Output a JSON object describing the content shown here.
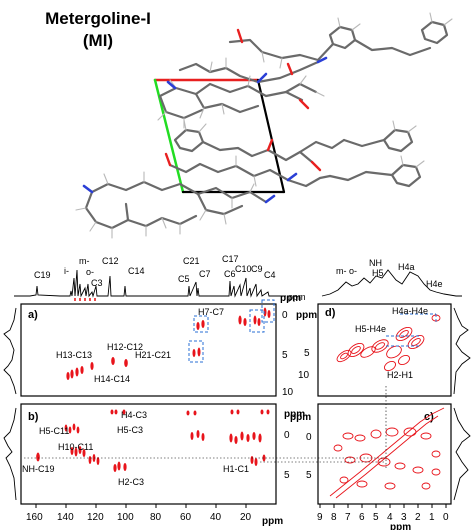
{
  "title": {
    "line1": "Metergoline-I",
    "line2": "(MI)"
  },
  "carbon_peaks": {
    "c19": "C19",
    "i": "i-",
    "m": "m-",
    "o": "o-",
    "c3": "C3",
    "c12": "C12",
    "c14": "C14",
    "c21": "C21",
    "c5": "C5",
    "c7": "C7",
    "c17": "C17",
    "c6": "C6",
    "c10": "C10",
    "c9": "C9",
    "c4": "C4"
  },
  "proton_peaks": {
    "mo": "m- o-",
    "nh": "NH",
    "h5": "H5",
    "h4a": "H4a",
    "h4e": "H4e"
  },
  "panels": {
    "a": "a)",
    "b": "b)",
    "c": "c)",
    "d": "d)"
  },
  "panel_a": {
    "h7c7": "H7-C7",
    "h13c13": "H13-C13",
    "h12c12": "H12-C12",
    "h21c21": "H21-C21",
    "h14c14": "H14-C14"
  },
  "panel_b": {
    "h5c11": "H5-C11",
    "h10c11": "H10-C11",
    "h4c3": "H4-C3",
    "h5c3": "H5-C3",
    "nhc19": "NH-C19",
    "h2c3": "H2-C3",
    "h1c1": "H1-C1"
  },
  "panel_d": {
    "h4ah4e": "H4a-H4e",
    "h5h4e": "H5-H4e",
    "h2h1": "H2-H1"
  },
  "units": {
    "ppm": "ppm"
  },
  "axes": {
    "c13_ticks": [
      "160",
      "140",
      "120",
      "100",
      "80",
      "60",
      "40",
      "20"
    ],
    "h1_ticks": [
      "9",
      "8",
      "7",
      "6",
      "5",
      "4",
      "3",
      "2",
      "1",
      "0"
    ],
    "v_ticks_a": [
      "0",
      "5",
      "10"
    ],
    "v_ticks_d": [
      "5",
      "10"
    ],
    "v_ticks_c": [
      "0",
      "5"
    ]
  },
  "colors": {
    "contour": "#e8141b",
    "box": "#2a6fd6",
    "cell_red": "#e82020",
    "cell_green": "#22dd22"
  }
}
